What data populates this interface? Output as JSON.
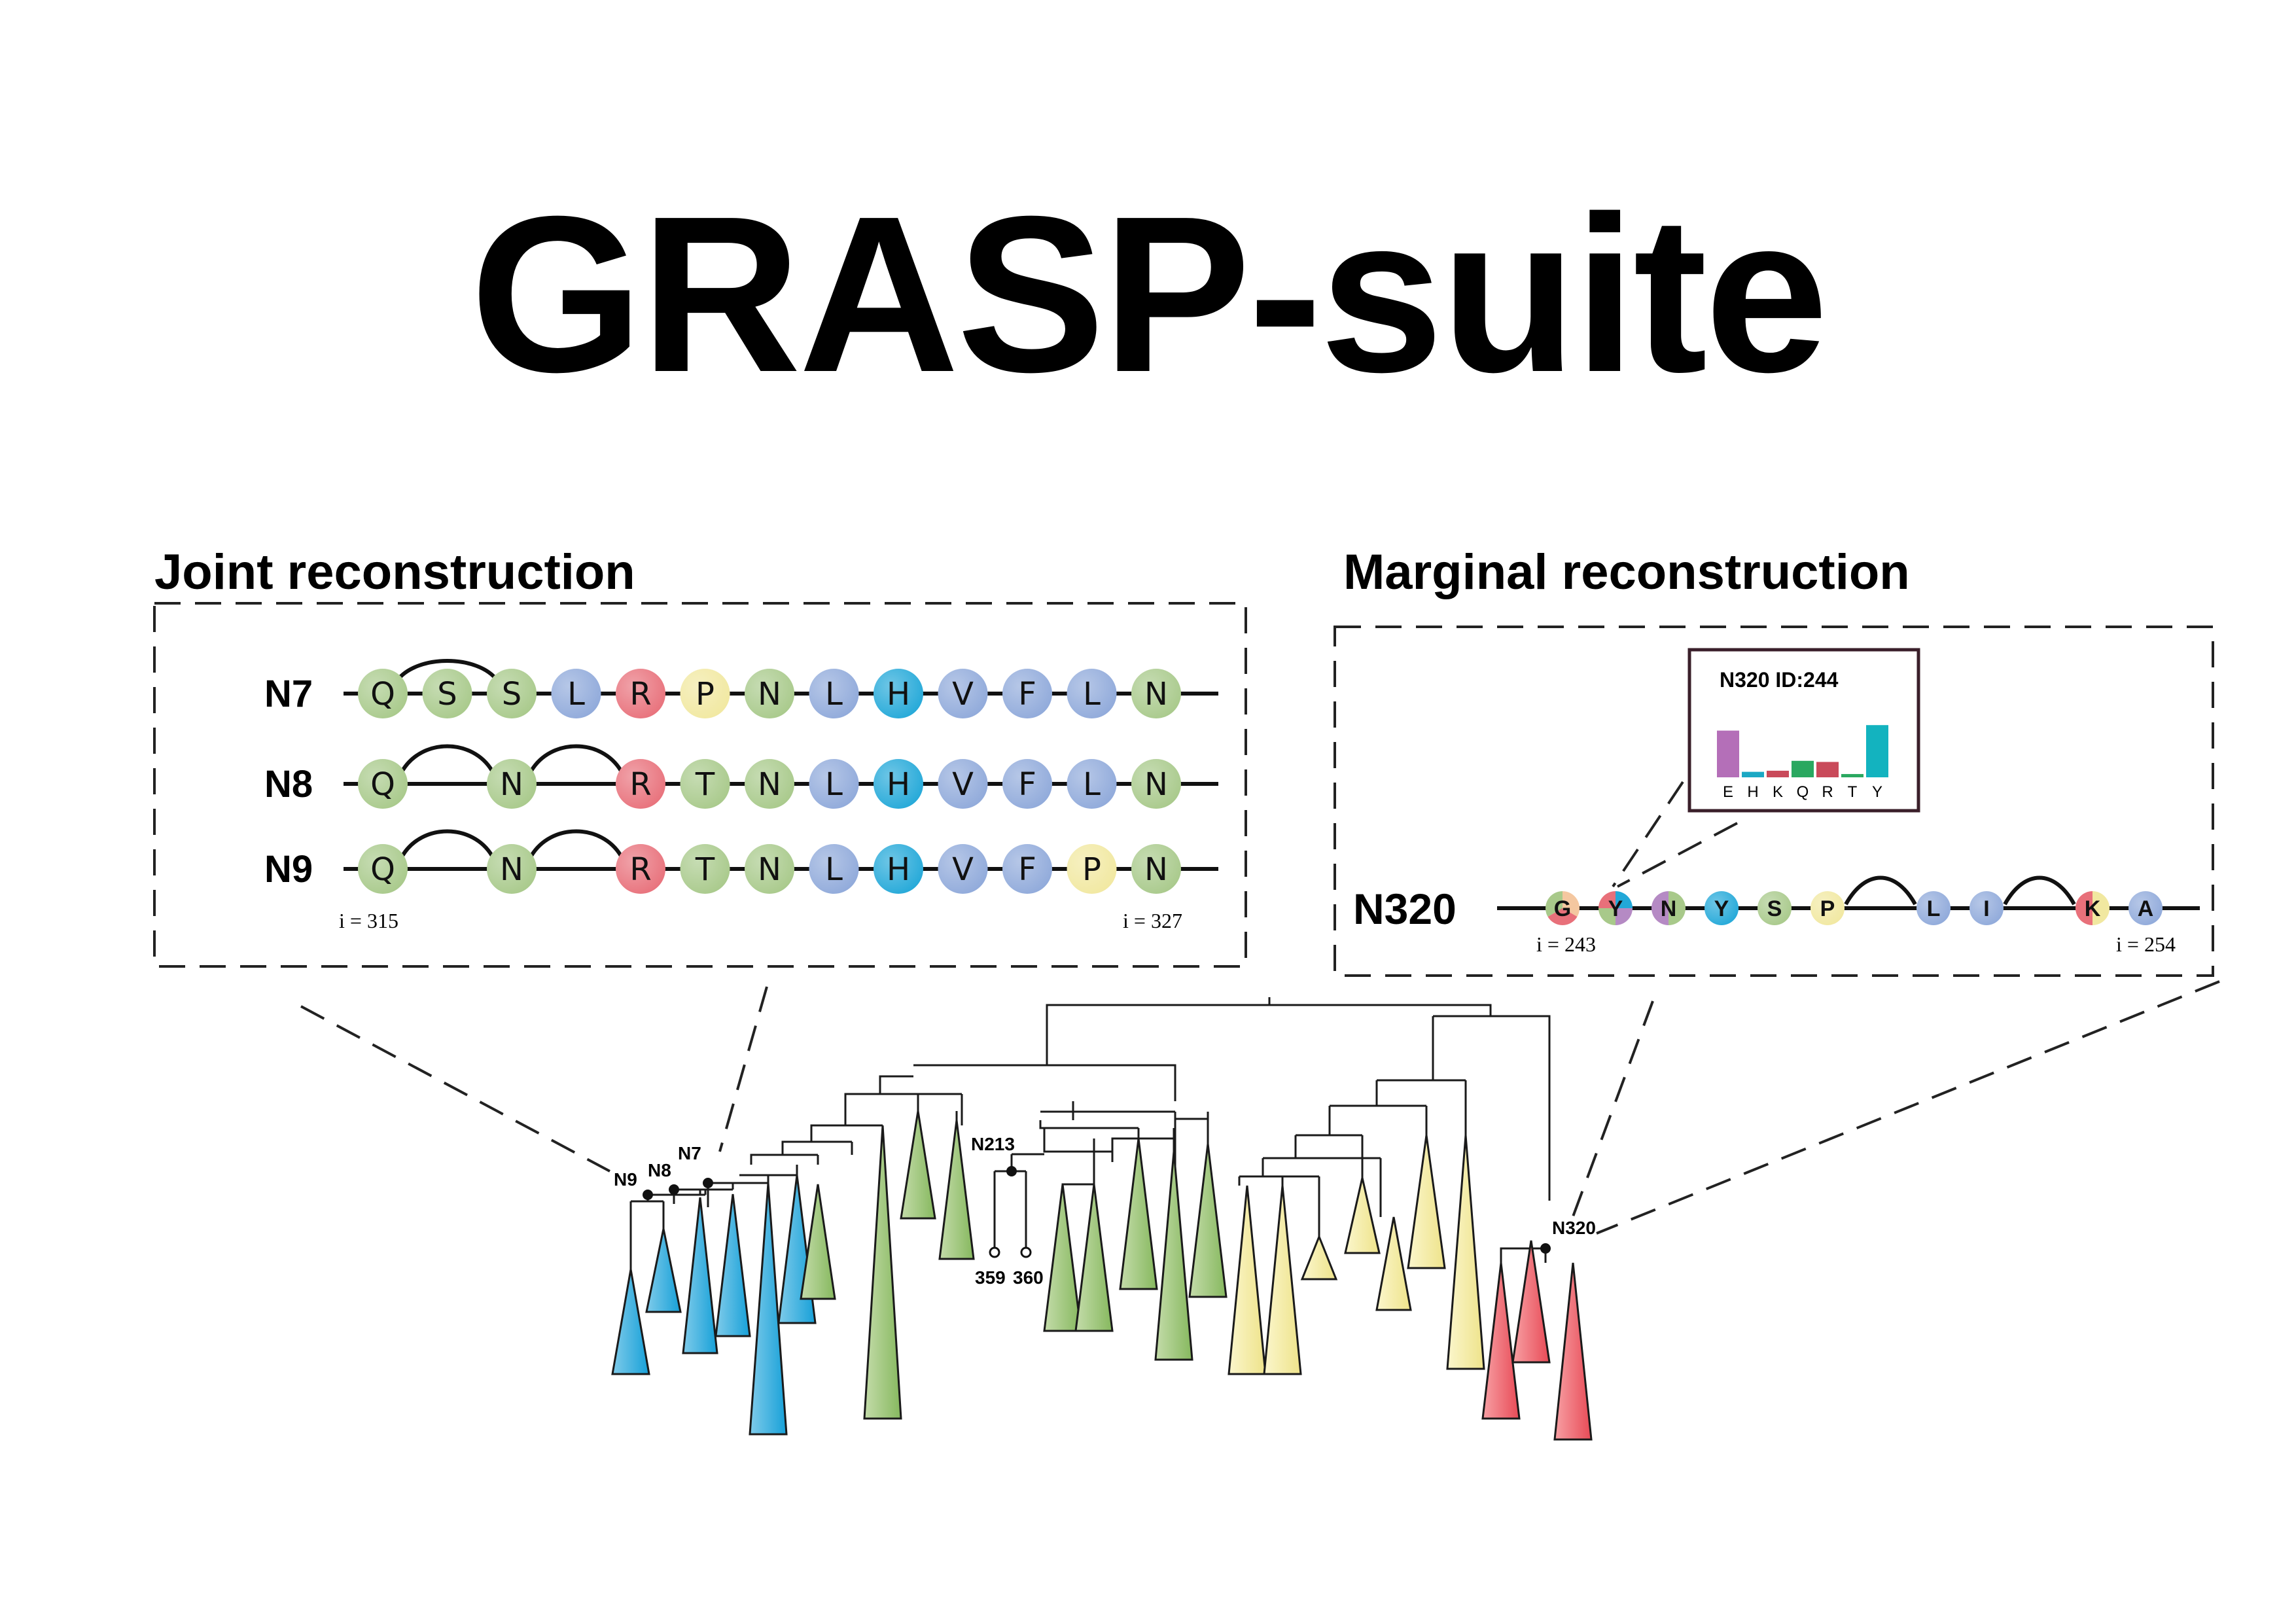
{
  "title": "GRASP-suite",
  "joint": {
    "heading": "Joint reconstruction",
    "rows": [
      {
        "label": "N7",
        "residues": [
          "Q",
          "S",
          "S",
          "L",
          "R",
          "P",
          "N",
          "L",
          "H",
          "V",
          "F",
          "L",
          "N"
        ],
        "links": [
          [
            0,
            2
          ]
        ]
      },
      {
        "label": "N8",
        "residues": [
          "Q",
          null,
          "N",
          null,
          "R",
          "T",
          "N",
          "L",
          "H",
          "V",
          "F",
          "L",
          "N"
        ],
        "links": [
          [
            0,
            2
          ],
          [
            2,
            4
          ]
        ]
      },
      {
        "label": "N9",
        "residues": [
          "Q",
          null,
          "N",
          null,
          "R",
          "T",
          "N",
          "L",
          "H",
          "V",
          "F",
          "P",
          "N"
        ],
        "links": [
          [
            0,
            2
          ],
          [
            2,
            4
          ]
        ]
      }
    ],
    "index_start": "i = 315",
    "index_end": "i = 327"
  },
  "marginal": {
    "heading": "Marginal reconstruction",
    "label": "N320",
    "residues": [
      {
        "letter": "G",
        "colors": [
          "#f4c7a0",
          "#e8707a",
          "#a8c98a"
        ]
      },
      {
        "letter": "Y",
        "colors": [
          "#22a8d8",
          "#b58ac4",
          "#a8c98a",
          "#e8707a"
        ]
      },
      {
        "letter": "N",
        "colors": [
          "#a8c98a",
          "#b58ac4"
        ]
      },
      {
        "letter": "Y",
        "colors": [
          "#22a8d8"
        ]
      },
      {
        "letter": "S",
        "colors": [
          "#a8c98a"
        ]
      },
      {
        "letter": "P",
        "colors": [
          "#f1e8a0"
        ]
      },
      null,
      {
        "letter": "L",
        "colors": [
          "#8fa9da"
        ]
      },
      {
        "letter": "I",
        "colors": [
          "#8fa9da"
        ]
      },
      null,
      {
        "letter": "K",
        "colors": [
          "#f1e8a0",
          "#e8707a"
        ]
      },
      {
        "letter": "A",
        "colors": [
          "#8fa9da"
        ]
      }
    ],
    "links": [
      [
        5,
        7
      ],
      [
        8,
        10
      ]
    ],
    "index_start": "i = 243",
    "index_end": "i = 254",
    "histogram": {
      "title": "N320 ID:244",
      "categories": [
        "E",
        "H",
        "K",
        "Q",
        "R",
        "T",
        "Y"
      ],
      "values": [
        0.85,
        0.1,
        0.12,
        0.3,
        0.28,
        0.06,
        0.95
      ],
      "colors": [
        "#b46fb8",
        "#1ba8c4",
        "#c94a5a",
        "#2aa860",
        "#c94a5a",
        "#2aa860",
        "#13b3bf"
      ]
    }
  },
  "tree": {
    "node_labels": [
      "N9",
      "N8",
      "N7",
      "N213",
      "N320"
    ],
    "leaf_labels": [
      "359",
      "360"
    ],
    "clade_colors": {
      "blue": "#22a8d8",
      "green": "#8fbe6a",
      "yellow": "#f1e89a",
      "red": "#ea5a62"
    }
  },
  "residue_colors": {
    "Q": "#a8c98a",
    "S": "#a8c98a",
    "N": "#a8c98a",
    "T": "#a8c98a",
    "L": "#8fa9da",
    "V": "#8fa9da",
    "F": "#8fa9da",
    "R": "#e8707a",
    "P": "#f1e8a0",
    "H": "#22a8d8"
  }
}
